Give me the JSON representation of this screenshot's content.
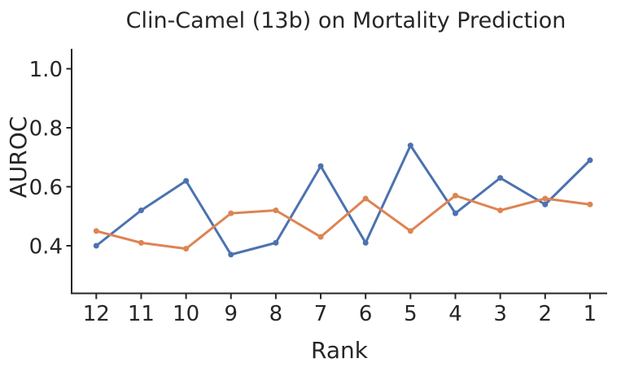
{
  "chart_data": {
    "type": "line",
    "title": "Clin-Camel (13b) on Mortality Prediction",
    "xlabel": "Rank",
    "ylabel": "AUROC",
    "categories": [
      12,
      11,
      10,
      9,
      8,
      7,
      6,
      5,
      4,
      3,
      2,
      1
    ],
    "x_axis_note": "ranks shown decreasing left to right",
    "y_ticks": [
      0.4,
      0.6,
      0.8,
      1.0
    ],
    "ylim": [
      0.24,
      1.07
    ],
    "grid": false,
    "legend": "none",
    "marker": "dot",
    "series": [
      {
        "name": "blue-series",
        "color": "#4C72B0",
        "values": [
          0.4,
          0.52,
          0.62,
          0.37,
          0.41,
          0.67,
          0.41,
          0.74,
          0.51,
          0.63,
          0.54,
          0.69
        ]
      },
      {
        "name": "orange-series",
        "color": "#DD8452",
        "values": [
          0.45,
          0.41,
          0.39,
          0.51,
          0.52,
          0.43,
          0.56,
          0.45,
          0.57,
          0.52,
          0.56,
          0.54
        ]
      }
    ]
  }
}
